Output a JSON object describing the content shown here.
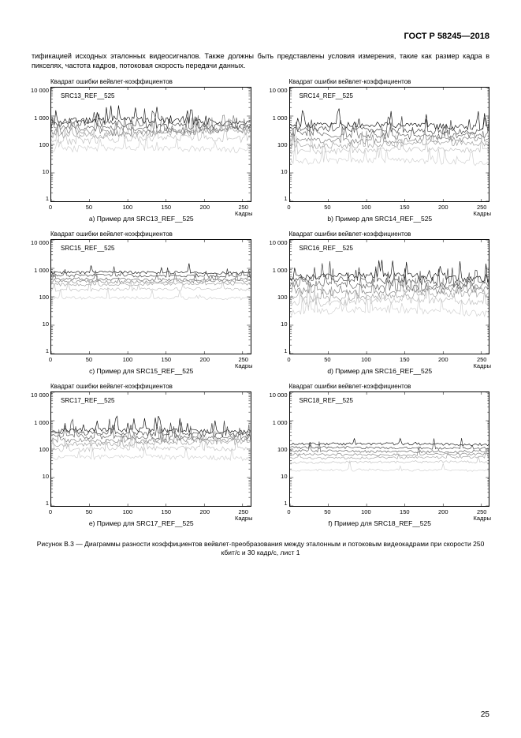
{
  "header": "ГОСТ Р 58245—2018",
  "intro": "тификацией исходных эталонных видеосигналов. Также должны быть представлены условия измерения, такие как размер кадра в пикселях, частота кадров, потоковая скорость передачи данных.",
  "figure_caption": "Рисунок В.3 — Диаграммы разности коэффициентов вейвлет-преобразования между эталонным и потоковым видеокадрами при скорости 250 кбит/с и 30 кадр/с, лист 1",
  "page_number": "25",
  "chart_common": {
    "ylabel": "Квадрат ошибки вейвлет-коэффициентов",
    "xaxis_label": "Кадры",
    "ylim": [
      1,
      10000
    ],
    "yscale": "log",
    "yticks": [
      "10 000",
      "1 000",
      "100",
      "10",
      "1"
    ],
    "xlim": [
      0,
      260
    ],
    "xticks": [
      0,
      50,
      100,
      150,
      200,
      250
    ],
    "background_color": "#ffffff",
    "frame_color": "#000000",
    "trace_colors": [
      "#000000",
      "#333333",
      "#555555",
      "#777777",
      "#999999",
      "#bbbbbb",
      "#cccccc"
    ],
    "title_fontsize": 8,
    "tick_fontsize": 7.5,
    "line_width": 0.6
  },
  "charts": [
    {
      "id": "a",
      "inner_label": "SRC13_REF__525",
      "subcaption": "a) Пример для SRC13_REF__525",
      "series_bases": [
        650,
        500,
        380,
        300,
        250,
        150,
        70
      ],
      "noise_amp": 0.25,
      "spike_freq": 0.12,
      "spike_size": 2.2,
      "drift": 0.15
    },
    {
      "id": "b",
      "inner_label": "SRC14_REF__525",
      "subcaption": "b) Пример для SRC14_REF__525",
      "series_bases": [
        450,
        320,
        220,
        150,
        100,
        60,
        25
      ],
      "noise_amp": 0.22,
      "spike_freq": 0.1,
      "spike_size": 2.5,
      "drift": 0.12
    },
    {
      "id": "c",
      "inner_label": "SRC15_REF__525",
      "subcaption": "c) Пример для SRC15_REF__525",
      "series_bases": [
        700,
        550,
        420,
        350,
        280,
        180,
        90
      ],
      "noise_amp": 0.12,
      "spike_freq": 0.03,
      "spike_size": 1.4,
      "drift": 0.04
    },
    {
      "id": "d",
      "inner_label": "SRC16_REF__525",
      "subcaption": "d) Пример для SRC16_REF__525",
      "series_bases": [
        500,
        360,
        260,
        170,
        110,
        65,
        30
      ],
      "noise_amp": 0.26,
      "spike_freq": 0.13,
      "spike_size": 2.8,
      "drift": 0.18
    },
    {
      "id": "e",
      "inner_label": "SRC17_REF__525",
      "subcaption": "e) Пример для SRC17_REF__525",
      "series_bases": [
        450,
        350,
        270,
        210,
        160,
        100,
        50
      ],
      "noise_amp": 0.18,
      "spike_freq": 0.09,
      "spike_size": 2.0,
      "drift": 0.08
    },
    {
      "id": "f",
      "inner_label": "SRC18_REF__525",
      "subcaption": "f) Пример для SRC18_REF__525",
      "series_bases": [
        150,
        110,
        85,
        65,
        50,
        35,
        18
      ],
      "noise_amp": 0.1,
      "spike_freq": 0.02,
      "spike_size": 1.3,
      "drift": 0.03
    }
  ]
}
